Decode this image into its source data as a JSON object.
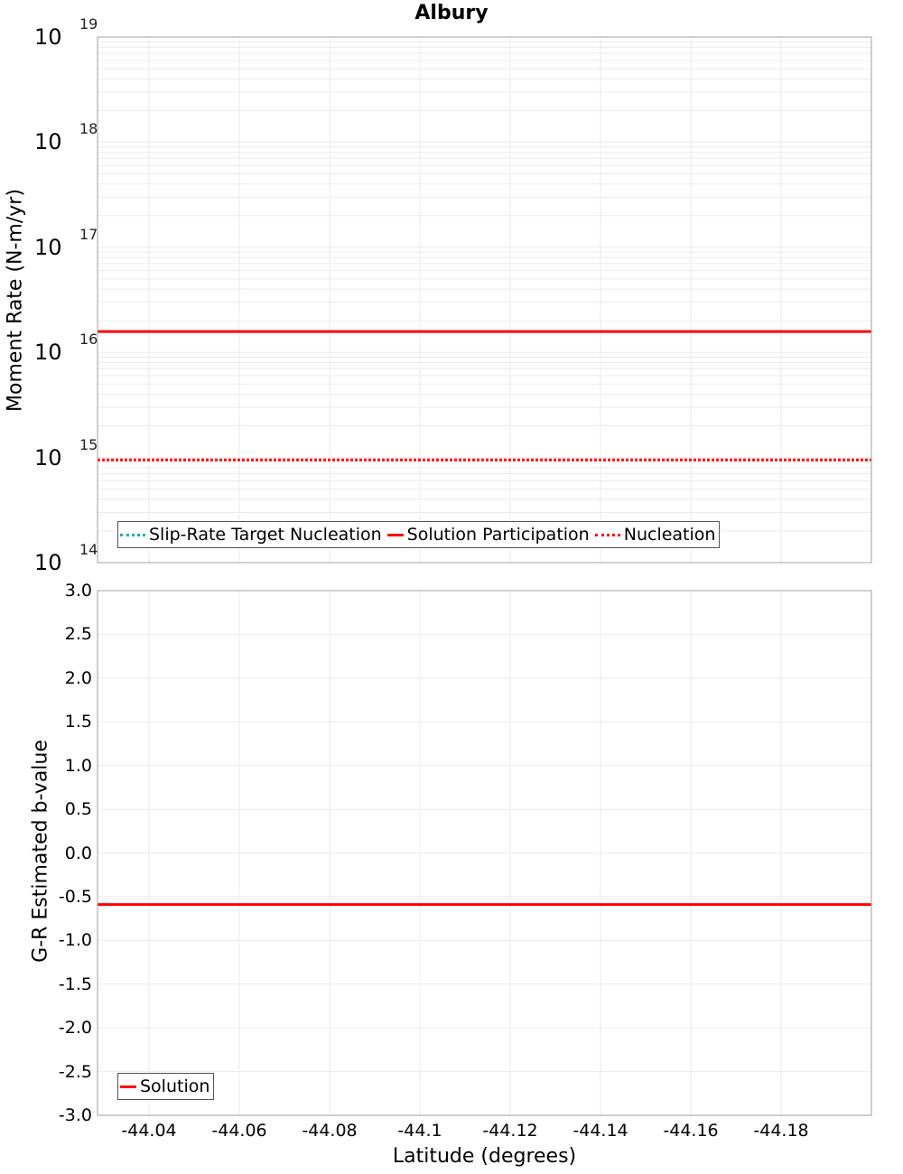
{
  "title": "Albury",
  "colors": {
    "solution": "#ff0000",
    "nucleation": "#ff0000",
    "slip_rate_target": "#00b3b3",
    "grid": "#ebebeb",
    "axis": "#a0a0a0"
  },
  "top_chart": {
    "ylabel": "Moment Rate (N-m/yr)",
    "legend": [
      {
        "label": "Slip-Rate Target Nucleation",
        "style": "dotted",
        "color": "#00b3b3"
      },
      {
        "label": "Solution Participation",
        "style": "solid",
        "color": "#ff0000"
      },
      {
        "label": "Nucleation",
        "style": "dotted",
        "color": "#ff0000"
      }
    ],
    "ytick_base": [
      "10",
      "10",
      "10",
      "10",
      "10",
      "10"
    ],
    "ytick_exp": [
      "19",
      "18",
      "17",
      "16",
      "15",
      "14"
    ]
  },
  "bottom_chart": {
    "ylabel": "G-R Estimated b-value",
    "legend": [
      {
        "label": "Solution",
        "style": "solid",
        "color": "#ff0000"
      }
    ],
    "yticks": [
      "3.0",
      "2.5",
      "2.0",
      "1.5",
      "1.0",
      "0.5",
      "0.0",
      "-0.5",
      "-1.0",
      "-1.5",
      "-2.0",
      "-2.5",
      "-3.0"
    ]
  },
  "xaxis": {
    "label": "Latitude (degrees)",
    "ticks": [
      "-44.04",
      "-44.06",
      "-44.08",
      "-44.1",
      "-44.12",
      "-44.14",
      "-44.16",
      "-44.18"
    ]
  },
  "chart_data": [
    {
      "type": "line",
      "title": "Albury",
      "xlabel": "Latitude (degrees)",
      "ylabel": "Moment Rate (N-m/yr)",
      "yscale": "log",
      "ylim": [
        100000000000000.0,
        1e+19
      ],
      "xlim": [
        -44.0286,
        -44.2
      ],
      "grid": true,
      "legend_position": "lower left",
      "x": [
        -44.0286,
        -44.2
      ],
      "series": [
        {
          "name": "Slip-Rate Target Nucleation",
          "values": [],
          "style": "dotted",
          "color": "#00b3b3"
        },
        {
          "name": "Solution Participation",
          "values": [
            1.58e+16,
            1.58e+16
          ],
          "style": "solid",
          "color": "#ff0000"
        },
        {
          "name": "Nucleation",
          "values": [
            950000000000000.0,
            950000000000000.0
          ],
          "style": "dotted",
          "color": "#ff0000"
        }
      ]
    },
    {
      "type": "line",
      "title": "",
      "xlabel": "Latitude (degrees)",
      "ylabel": "G-R Estimated b-value",
      "ylim": [
        -3.0,
        3.0
      ],
      "xlim": [
        -44.0286,
        -44.2
      ],
      "grid": true,
      "legend_position": "lower left",
      "x": [
        -44.0286,
        -44.2
      ],
      "series": [
        {
          "name": "Solution",
          "values": [
            -0.59,
            -0.59
          ],
          "style": "solid",
          "color": "#ff0000"
        }
      ]
    }
  ]
}
